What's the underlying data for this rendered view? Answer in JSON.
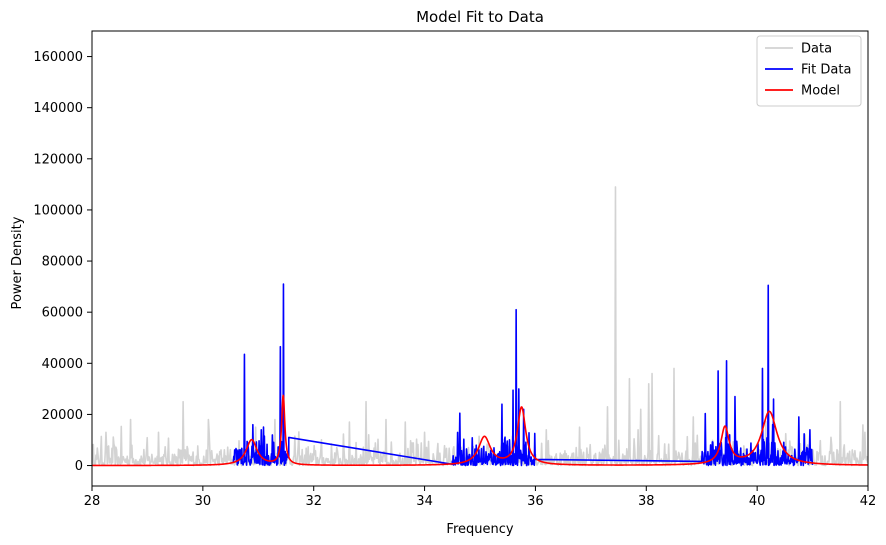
{
  "chart_data": {
    "type": "line",
    "title": "Model Fit to Data",
    "xlabel": "Frequency",
    "ylabel": "Power Density",
    "xlim": [
      28,
      42
    ],
    "ylim": [
      -8000,
      170000
    ],
    "xticks": [
      28,
      30,
      32,
      34,
      36,
      38,
      40,
      42
    ],
    "yticks": [
      0,
      20000,
      40000,
      60000,
      80000,
      100000,
      120000,
      140000,
      160000
    ],
    "legend_position": "top-right",
    "series": [
      {
        "name": "Data",
        "color": "#d3d3d3",
        "generator": "noisy",
        "x_range": [
          28,
          42
        ],
        "baseline": 3500,
        "spikes": [
          [
            28.25,
            13000
          ],
          [
            28.7,
            18000
          ],
          [
            29.2,
            13000
          ],
          [
            29.65,
            25000
          ],
          [
            30.1,
            18000
          ],
          [
            30.95,
            15000
          ],
          [
            31.3,
            18000
          ],
          [
            32.65,
            17000
          ],
          [
            32.95,
            25000
          ],
          [
            33.3,
            18000
          ],
          [
            33.65,
            17000
          ],
          [
            34.0,
            13000
          ],
          [
            36.2,
            14000
          ],
          [
            36.8,
            15000
          ],
          [
            37.3,
            23000
          ],
          [
            37.45,
            109000
          ],
          [
            37.7,
            34000
          ],
          [
            37.9,
            22000
          ],
          [
            38.05,
            32000
          ],
          [
            38.1,
            36000
          ],
          [
            38.5,
            38000
          ],
          [
            38.85,
            19000
          ],
          [
            41.5,
            25000
          ],
          [
            41.95,
            13000
          ]
        ]
      },
      {
        "name": "Fit Data",
        "color": "#0000ff",
        "generator": "segments",
        "segments": [
          [
            30.55,
            31.55
          ],
          [
            34.5,
            36.0
          ],
          [
            39.0,
            41.0
          ]
        ],
        "baseline": 4000,
        "spikes": [
          [
            30.75,
            43500
          ],
          [
            30.9,
            16000
          ],
          [
            31.05,
            14000
          ],
          [
            31.25,
            12000
          ],
          [
            31.4,
            46500
          ],
          [
            31.45,
            71000
          ],
          [
            35.4,
            24000
          ],
          [
            35.6,
            29500
          ],
          [
            35.65,
            61000
          ],
          [
            35.7,
            30000
          ],
          [
            39.3,
            37000
          ],
          [
            39.45,
            41000
          ],
          [
            39.6,
            27000
          ],
          [
            40.1,
            38000
          ],
          [
            40.2,
            70500
          ],
          [
            40.3,
            26000
          ],
          [
            40.75,
            19000
          ],
          [
            40.95,
            14000
          ]
        ],
        "bridge": [
          [
            31.55,
            11000
          ],
          [
            34.5,
            500
          ]
        ]
      },
      {
        "name": "Model",
        "color": "#ff0000",
        "generator": "lorentzian",
        "x_range": [
          28,
          42
        ],
        "peaks": [
          [
            30.88,
            10000,
            0.12
          ],
          [
            31.45,
            27000,
            0.035
          ],
          [
            35.08,
            11000,
            0.13
          ],
          [
            35.75,
            22500,
            0.09
          ],
          [
            39.42,
            14500,
            0.09
          ],
          [
            40.22,
            21000,
            0.17
          ]
        ]
      }
    ]
  }
}
